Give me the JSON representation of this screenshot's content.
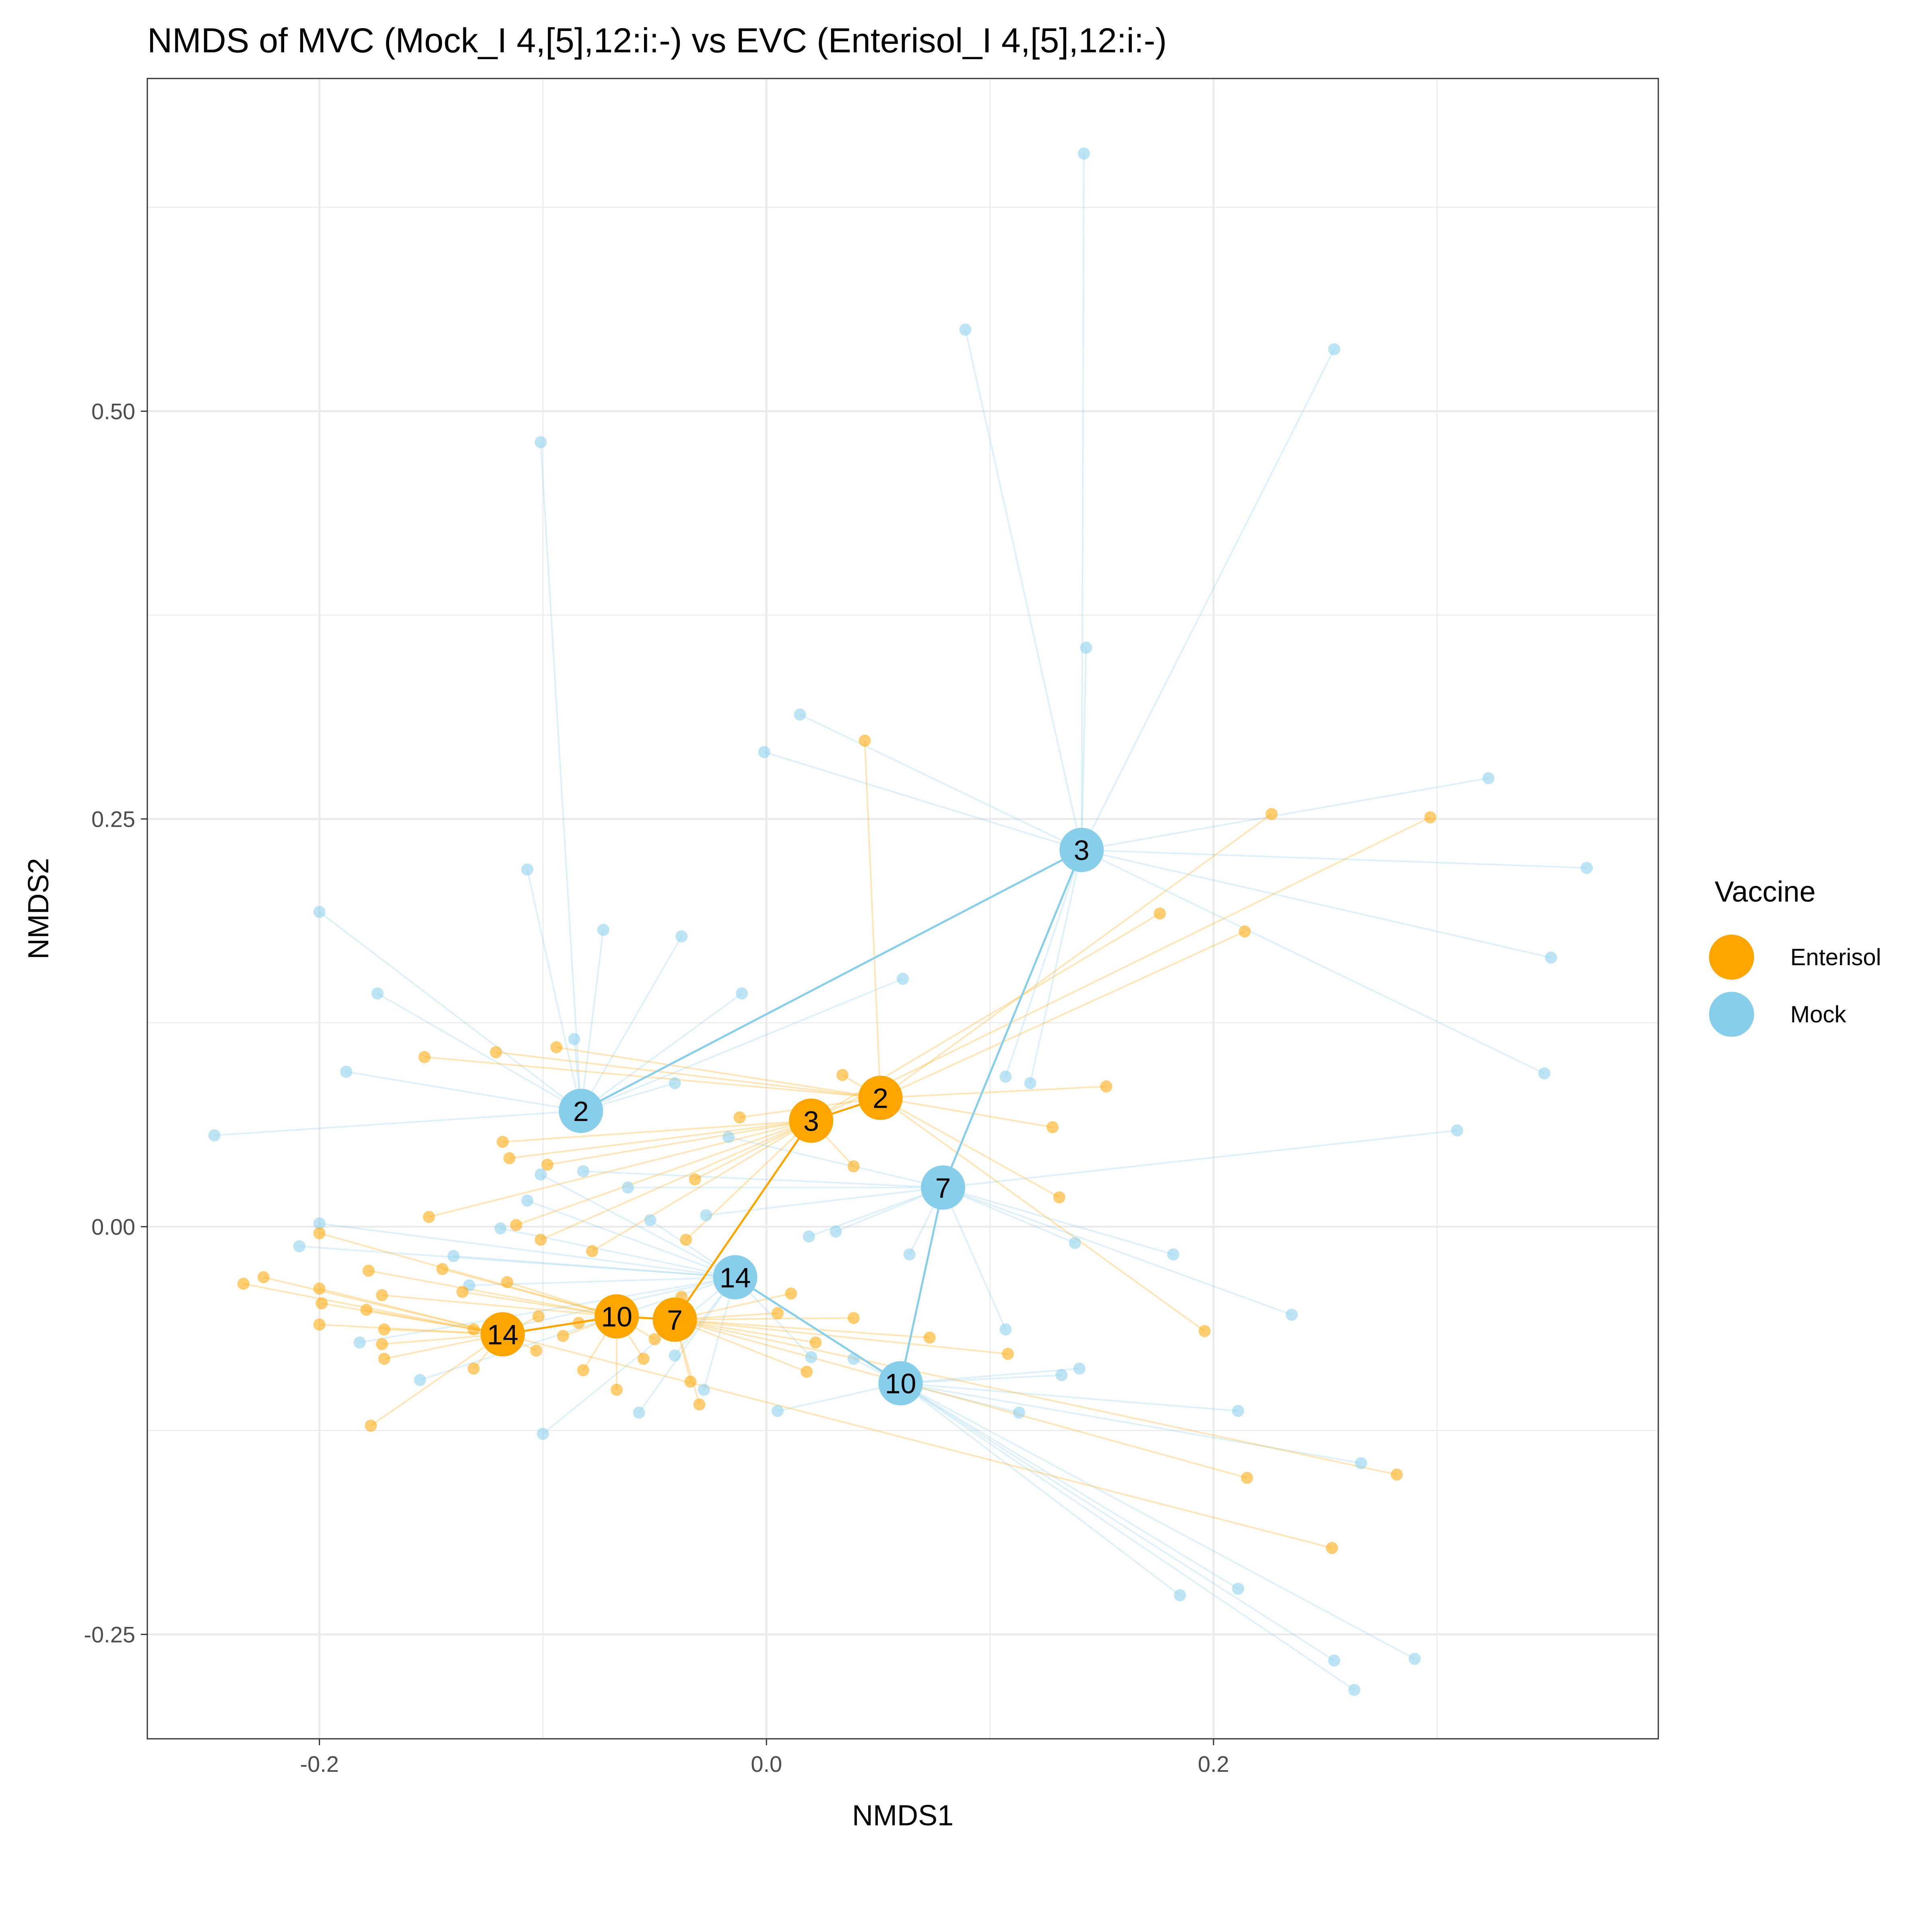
{
  "chart_data": {
    "type": "scatter",
    "title": "NMDS of MVC (Mock_I 4,[5],12:i:-) vs EVC (Enterisol_I 4,[5],12:i:-)",
    "xlabel": "NMDS1",
    "ylabel": "NMDS2",
    "xlim": [
      -0.277,
      0.399
    ],
    "ylim": [
      -0.314,
      0.704
    ],
    "x_ticks": [
      -0.2,
      0.0,
      0.2
    ],
    "x_tick_labels": [
      "-0.2",
      "0.0",
      "0.2"
    ],
    "y_ticks": [
      -0.25,
      0.0,
      0.25,
      0.5
    ],
    "y_tick_labels": [
      "-0.25",
      "0.00",
      "0.25",
      "0.50"
    ],
    "grid": true,
    "legend": {
      "title": "Vaccine",
      "position": "right",
      "entries": [
        {
          "label": "Enterisol",
          "color": "#FFA500"
        },
        {
          "label": "Mock",
          "color": "#87CEEB"
        }
      ]
    },
    "colors": {
      "Enterisol": "#FFA500",
      "Mock": "#87CEEB"
    },
    "series": [
      {
        "name": "Enterisol",
        "color": "#FFA500",
        "centroids": [
          {
            "label": "2",
            "x": 0.051,
            "y": 0.079
          },
          {
            "label": "3",
            "x": 0.02,
            "y": 0.065
          },
          {
            "label": "7",
            "x": -0.041,
            "y": -0.057
          },
          {
            "label": "10",
            "x": -0.067,
            "y": -0.055
          },
          {
            "label": "14",
            "x": -0.118,
            "y": -0.066
          }
        ],
        "trajectory": [
          "2",
          "3",
          "7",
          "10",
          "14"
        ],
        "points": [
          {
            "x": 0.044,
            "y": 0.298,
            "c": "2"
          },
          {
            "x": 0.226,
            "y": 0.253,
            "c": "2"
          },
          {
            "x": 0.214,
            "y": 0.181,
            "c": "2"
          },
          {
            "x": 0.152,
            "y": 0.086,
            "c": "2"
          },
          {
            "x": 0.128,
            "y": 0.061,
            "c": "2"
          },
          {
            "x": 0.131,
            "y": 0.018,
            "c": "2"
          },
          {
            "x": 0.196,
            "y": -0.064,
            "c": "2"
          },
          {
            "x": -0.153,
            "y": 0.104,
            "c": "2"
          },
          {
            "x": -0.121,
            "y": 0.107,
            "c": "2"
          },
          {
            "x": -0.094,
            "y": 0.11,
            "c": "2"
          },
          {
            "x": 0.034,
            "y": 0.093,
            "c": "2"
          },
          {
            "x": -0.012,
            "y": 0.067,
            "c": "2"
          },
          {
            "x": 0.297,
            "y": 0.251,
            "c": "3"
          },
          {
            "x": 0.176,
            "y": 0.192,
            "c": "3"
          },
          {
            "x": -0.118,
            "y": 0.052,
            "c": "3"
          },
          {
            "x": -0.115,
            "y": 0.042,
            "c": "3"
          },
          {
            "x": -0.098,
            "y": 0.038,
            "c": "3"
          },
          {
            "x": 0.039,
            "y": 0.037,
            "c": "3"
          },
          {
            "x": -0.032,
            "y": 0.029,
            "c": "3"
          },
          {
            "x": -0.112,
            "y": 0.001,
            "c": "3"
          },
          {
            "x": -0.101,
            "y": -0.008,
            "c": "3"
          },
          {
            "x": -0.151,
            "y": 0.006,
            "c": "3"
          },
          {
            "x": -0.078,
            "y": -0.015,
            "c": "3"
          },
          {
            "x": -0.036,
            "y": -0.008,
            "c": "3"
          },
          {
            "x": 0.215,
            "y": -0.154,
            "c": "7"
          },
          {
            "x": 0.282,
            "y": -0.152,
            "c": "7"
          },
          {
            "x": 0.108,
            "y": -0.078,
            "c": "7"
          },
          {
            "x": 0.073,
            "y": -0.068,
            "c": "7"
          },
          {
            "x": 0.039,
            "y": -0.056,
            "c": "7"
          },
          {
            "x": 0.011,
            "y": -0.041,
            "c": "7"
          },
          {
            "x": 0.005,
            "y": -0.053,
            "c": "7"
          },
          {
            "x": 0.022,
            "y": -0.071,
            "c": "7"
          },
          {
            "x": 0.018,
            "y": -0.089,
            "c": "7"
          },
          {
            "x": -0.03,
            "y": -0.109,
            "c": "7"
          },
          {
            "x": -0.034,
            "y": -0.095,
            "c": "7"
          },
          {
            "x": -0.038,
            "y": -0.043,
            "c": "7"
          },
          {
            "x": -0.2,
            "y": -0.004,
            "c": "10"
          },
          {
            "x": -0.178,
            "y": -0.027,
            "c": "10"
          },
          {
            "x": -0.145,
            "y": -0.026,
            "c": "10"
          },
          {
            "x": -0.172,
            "y": -0.042,
            "c": "10"
          },
          {
            "x": -0.136,
            "y": -0.04,
            "c": "10"
          },
          {
            "x": -0.116,
            "y": -0.034,
            "c": "10"
          },
          {
            "x": -0.084,
            "y": -0.059,
            "c": "10"
          },
          {
            "x": -0.091,
            "y": -0.067,
            "c": "10"
          },
          {
            "x": -0.082,
            "y": -0.088,
            "c": "10"
          },
          {
            "x": -0.067,
            "y": -0.1,
            "c": "10"
          },
          {
            "x": -0.055,
            "y": -0.081,
            "c": "10"
          },
          {
            "x": -0.05,
            "y": -0.069,
            "c": "10"
          },
          {
            "x": -0.234,
            "y": -0.035,
            "c": "14"
          },
          {
            "x": -0.225,
            "y": -0.031,
            "c": "14"
          },
          {
            "x": -0.2,
            "y": -0.038,
            "c": "14"
          },
          {
            "x": -0.199,
            "y": -0.047,
            "c": "14"
          },
          {
            "x": -0.2,
            "y": -0.06,
            "c": "14"
          },
          {
            "x": -0.179,
            "y": -0.051,
            "c": "14"
          },
          {
            "x": -0.171,
            "y": -0.063,
            "c": "14"
          },
          {
            "x": -0.172,
            "y": -0.072,
            "c": "14"
          },
          {
            "x": -0.171,
            "y": -0.081,
            "c": "14"
          },
          {
            "x": -0.177,
            "y": -0.122,
            "c": "14"
          },
          {
            "x": -0.131,
            "y": -0.087,
            "c": "14"
          },
          {
            "x": -0.131,
            "y": -0.063,
            "c": "14"
          },
          {
            "x": -0.103,
            "y": -0.076,
            "c": "14"
          },
          {
            "x": -0.102,
            "y": -0.055,
            "c": "14"
          },
          {
            "x": 0.253,
            "y": -0.197,
            "c": "14"
          }
        ]
      },
      {
        "name": "Mock",
        "color": "#87CEEB",
        "centroids": [
          {
            "label": "2",
            "x": -0.083,
            "y": 0.071
          },
          {
            "label": "3",
            "x": 0.141,
            "y": 0.231
          },
          {
            "label": "7",
            "x": 0.079,
            "y": 0.024
          },
          {
            "label": "10",
            "x": 0.06,
            "y": -0.096
          },
          {
            "label": "14",
            "x": -0.014,
            "y": -0.031
          }
        ],
        "trajectory": [
          "2",
          "3",
          "7",
          "10",
          "14"
        ],
        "points": [
          {
            "x": -0.101,
            "y": 0.481,
            "c": "2"
          },
          {
            "x": -0.2,
            "y": 0.193,
            "c": "2"
          },
          {
            "x": -0.174,
            "y": 0.143,
            "c": "2"
          },
          {
            "x": -0.188,
            "y": 0.095,
            "c": "2"
          },
          {
            "x": -0.247,
            "y": 0.056,
            "c": "2"
          },
          {
            "x": -0.107,
            "y": 0.219,
            "c": "2"
          },
          {
            "x": -0.073,
            "y": 0.182,
            "c": "2"
          },
          {
            "x": -0.086,
            "y": 0.115,
            "c": "2"
          },
          {
            "x": -0.038,
            "y": 0.178,
            "c": "2"
          },
          {
            "x": -0.011,
            "y": 0.143,
            "c": "2"
          },
          {
            "x": 0.061,
            "y": 0.152,
            "c": "2"
          },
          {
            "x": -0.041,
            "y": 0.088,
            "c": "2"
          },
          {
            "x": 0.142,
            "y": 0.658,
            "c": "3"
          },
          {
            "x": 0.089,
            "y": 0.55,
            "c": "3"
          },
          {
            "x": 0.254,
            "y": 0.538,
            "c": "3"
          },
          {
            "x": 0.143,
            "y": 0.355,
            "c": "3"
          },
          {
            "x": 0.015,
            "y": 0.314,
            "c": "3"
          },
          {
            "x": -0.001,
            "y": 0.291,
            "c": "3"
          },
          {
            "x": 0.323,
            "y": 0.275,
            "c": "3"
          },
          {
            "x": 0.367,
            "y": 0.22,
            "c": "3"
          },
          {
            "x": 0.351,
            "y": 0.165,
            "c": "3"
          },
          {
            "x": 0.348,
            "y": 0.094,
            "c": "3"
          },
          {
            "x": 0.107,
            "y": 0.092,
            "c": "3"
          },
          {
            "x": 0.118,
            "y": 0.088,
            "c": "3"
          },
          {
            "x": 0.309,
            "y": 0.059,
            "c": "7"
          },
          {
            "x": 0.182,
            "y": -0.017,
            "c": "7"
          },
          {
            "x": 0.235,
            "y": -0.054,
            "c": "7"
          },
          {
            "x": 0.138,
            "y": -0.01,
            "c": "7"
          },
          {
            "x": 0.107,
            "y": -0.063,
            "c": "7"
          },
          {
            "x": 0.064,
            "y": -0.017,
            "c": "7"
          },
          {
            "x": 0.031,
            "y": -0.003,
            "c": "7"
          },
          {
            "x": 0.019,
            "y": -0.006,
            "c": "7"
          },
          {
            "x": -0.017,
            "y": 0.055,
            "c": "7"
          },
          {
            "x": -0.062,
            "y": 0.024,
            "c": "7"
          },
          {
            "x": -0.082,
            "y": 0.034,
            "c": "7"
          },
          {
            "x": -0.027,
            "y": 0.007,
            "c": "7"
          },
          {
            "x": 0.185,
            "y": -0.226,
            "c": "10"
          },
          {
            "x": 0.211,
            "y": -0.222,
            "c": "10"
          },
          {
            "x": 0.254,
            "y": -0.266,
            "c": "10"
          },
          {
            "x": 0.263,
            "y": -0.284,
            "c": "10"
          },
          {
            "x": 0.29,
            "y": -0.265,
            "c": "10"
          },
          {
            "x": 0.266,
            "y": -0.145,
            "c": "10"
          },
          {
            "x": 0.211,
            "y": -0.113,
            "c": "10"
          },
          {
            "x": 0.113,
            "y": -0.114,
            "c": "10"
          },
          {
            "x": 0.132,
            "y": -0.091,
            "c": "10"
          },
          {
            "x": 0.14,
            "y": -0.087,
            "c": "10"
          },
          {
            "x": 0.039,
            "y": -0.081,
            "c": "10"
          },
          {
            "x": 0.005,
            "y": -0.113,
            "c": "10"
          },
          {
            "x": -0.209,
            "y": -0.012,
            "c": "14"
          },
          {
            "x": -0.2,
            "y": 0.002,
            "c": "14"
          },
          {
            "x": -0.14,
            "y": -0.018,
            "c": "14"
          },
          {
            "x": -0.133,
            "y": -0.036,
            "c": "14"
          },
          {
            "x": -0.122,
            "y": -0.064,
            "c": "14"
          },
          {
            "x": -0.182,
            "y": -0.071,
            "c": "14"
          },
          {
            "x": -0.155,
            "y": -0.094,
            "c": "14"
          },
          {
            "x": -0.1,
            "y": -0.127,
            "c": "14"
          },
          {
            "x": -0.101,
            "y": 0.032,
            "c": "14"
          },
          {
            "x": -0.107,
            "y": 0.016,
            "c": "14"
          },
          {
            "x": -0.119,
            "y": -0.001,
            "c": "14"
          },
          {
            "x": -0.052,
            "y": 0.004,
            "c": "14"
          },
          {
            "x": -0.057,
            "y": -0.114,
            "c": "14"
          },
          {
            "x": -0.028,
            "y": -0.1,
            "c": "14"
          },
          {
            "x": -0.041,
            "y": -0.079,
            "c": "14"
          },
          {
            "x": 0.02,
            "y": -0.08,
            "c": "14"
          }
        ]
      }
    ]
  }
}
